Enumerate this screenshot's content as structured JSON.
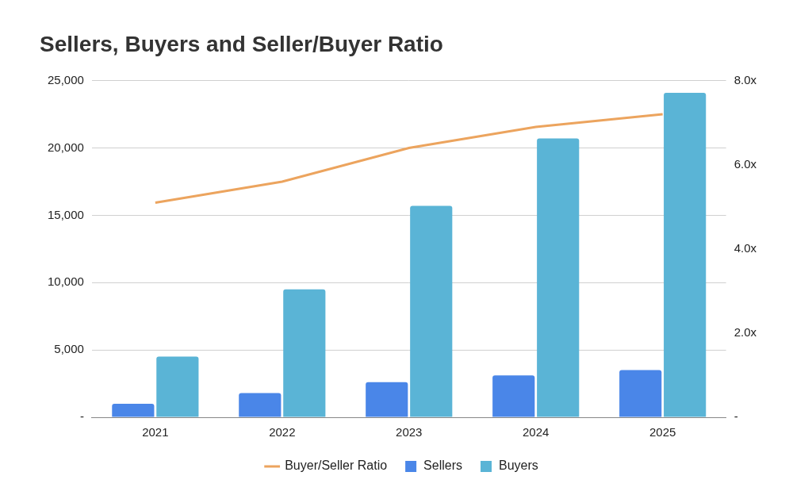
{
  "chart_data": {
    "type": "bar",
    "title": "Sellers, Buyers and Seller/Buyer Ratio",
    "categories": [
      "2021",
      "2022",
      "2023",
      "2024",
      "2025"
    ],
    "series": [
      {
        "name": "Sellers",
        "color": "#4a86e8",
        "values": [
          1000,
          1800,
          2600,
          3100,
          3500
        ]
      },
      {
        "name": "Buyers",
        "color": "#5ab4d6",
        "values": [
          4500,
          9500,
          15700,
          20700,
          24100
        ]
      },
      {
        "name": "Buyer/Seller Ratio",
        "color": "#eca45e",
        "type": "line",
        "axis": "y2",
        "values": [
          5.1,
          5.6,
          6.4,
          6.9,
          7.2
        ]
      }
    ],
    "ylim": [
      0,
      25000
    ],
    "yticks": [
      {
        "value": 0,
        "label": "-"
      },
      {
        "value": 5000,
        "label": "5,000"
      },
      {
        "value": 10000,
        "label": "10,000"
      },
      {
        "value": 15000,
        "label": "15,000"
      },
      {
        "value": 20000,
        "label": "20,000"
      },
      {
        "value": 25000,
        "label": "25,000"
      }
    ],
    "y2lim": [
      0,
      8
    ],
    "y2ticks": [
      {
        "value": 0,
        "label": "-"
      },
      {
        "value": 2,
        "label": "2.0x"
      },
      {
        "value": 4,
        "label": "4.0x"
      },
      {
        "value": 6,
        "label": "6.0x"
      },
      {
        "value": 8,
        "label": "8.0x"
      }
    ],
    "grid": true,
    "legend": "bottom"
  }
}
